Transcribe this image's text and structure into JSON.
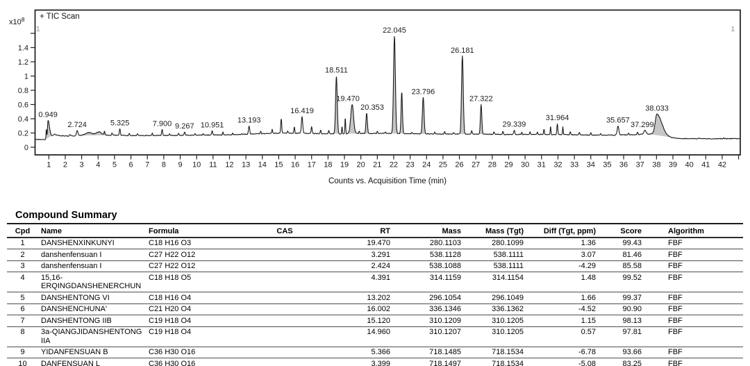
{
  "chart_data": {
    "type": "line",
    "title": "+ TIC Scan",
    "y_scale": {
      "base": "x10",
      "exp": "8"
    },
    "corner_markers": {
      "left": "1",
      "right": "1"
    },
    "xlabel": "Counts vs. Acquisition Time (min)",
    "x_ticks": [
      1,
      2,
      3,
      4,
      5,
      6,
      7,
      8,
      9,
      10,
      11,
      12,
      13,
      14,
      15,
      16,
      17,
      18,
      19,
      20,
      21,
      22,
      23,
      24,
      25,
      26,
      27,
      28,
      29,
      30,
      31,
      32,
      33,
      34,
      35,
      36,
      37,
      38,
      39,
      40,
      41,
      42
    ],
    "x_minor_ticks": [
      43
    ],
    "x_domain": [
      0.14,
      43.08
    ],
    "y_ticks": [
      {
        "v": 0,
        "label": "0"
      },
      {
        "v": 0.2,
        "label": "0.2"
      },
      {
        "v": 0.4,
        "label": "0.4"
      },
      {
        "v": 0.6,
        "label": "0.6"
      },
      {
        "v": 0.8,
        "label": "0.8"
      },
      {
        "v": 1,
        "label": "1"
      },
      {
        "v": 1.2,
        "label": "1.2"
      },
      {
        "v": 1.4,
        "label": "1.4"
      },
      {
        "v": 1.6,
        "label": ""
      }
    ],
    "intensity_units": "counts x10^8",
    "labeled_peaks": [
      {
        "rt": 0.949,
        "apex": 0.375,
        "sl": 0.03,
        "sr": 0.085,
        "filled": true,
        "fill": [
          0.78,
          1.12
        ]
      },
      {
        "rt": 2.724,
        "apex": 0.235,
        "sl": 0.045,
        "sr": 0.045
      },
      {
        "rt": 5.325,
        "apex": 0.26,
        "sl": 0.03,
        "sr": 0.03
      },
      {
        "rt": 7.9,
        "apex": 0.25,
        "sl": 0.03,
        "sr": 0.03
      },
      {
        "rt": 9.267,
        "apex": 0.215,
        "sl": 0.03,
        "sr": 0.03
      },
      {
        "rt": 10.951,
        "apex": 0.23,
        "sl": 0.03,
        "sr": 0.03
      },
      {
        "rt": 13.193,
        "apex": 0.3,
        "sl": 0.035,
        "sr": 0.035
      },
      {
        "rt": 16.419,
        "apex": 0.43,
        "sl": 0.04,
        "sr": 0.04
      },
      {
        "rt": 18.511,
        "apex": 1.0,
        "sl": 0.05,
        "sr": 0.05,
        "filled": true,
        "fill": [
          18.36,
          18.68
        ]
      },
      {
        "rt": 19.47,
        "apex": 0.6,
        "sl": 0.085,
        "sr": 0.085,
        "filled": true,
        "fill": [
          19.16,
          19.78
        ],
        "dx": -6
      },
      {
        "rt": 20.353,
        "apex": 0.48,
        "sl": 0.042,
        "sr": 0.042,
        "filled": true,
        "fill": [
          20.22,
          20.52
        ],
        "dx": 8
      },
      {
        "rt": 22.045,
        "apex": 1.56,
        "sl": 0.055,
        "sr": 0.055,
        "filled": true,
        "fill": [
          21.87,
          22.23
        ]
      },
      {
        "rt": 23.796,
        "apex": 0.7,
        "sl": 0.05,
        "sr": 0.05,
        "filled": true,
        "fill": [
          23.62,
          23.97
        ]
      },
      {
        "rt": 26.181,
        "apex": 1.28,
        "sl": 0.052,
        "sr": 0.052,
        "filled": true,
        "fill": [
          26.02,
          26.36
        ]
      },
      {
        "rt": 27.322,
        "apex": 0.6,
        "sl": 0.042,
        "sr": 0.042,
        "filled": true,
        "fill": [
          27.19,
          27.46
        ]
      },
      {
        "rt": 29.339,
        "apex": 0.24,
        "sl": 0.035,
        "sr": 0.035
      },
      {
        "rt": 31.964,
        "apex": 0.33,
        "sl": 0.028,
        "sr": 0.028
      },
      {
        "rt": 35.657,
        "apex": 0.3,
        "sl": 0.05,
        "sr": 0.05
      },
      {
        "rt": 37.299,
        "apex": 0.235,
        "sl": 0.07,
        "sr": 0.07,
        "dx": -4
      },
      {
        "rt": 38.033,
        "apex": 0.465,
        "sl": 0.11,
        "sr": 0.28,
        "filled": true,
        "fill": [
          37.62,
          39.35
        ]
      }
    ],
    "minor_peaks": [
      [
        0.85,
        0.26,
        0.018
      ],
      [
        1.35,
        0.185,
        0.07
      ],
      [
        2.3,
        0.175,
        0.04
      ],
      [
        3.45,
        0.205,
        0.22
      ],
      [
        4.05,
        0.215,
        0.15
      ],
      [
        4.39,
        0.225,
        0.025
      ],
      [
        4.85,
        0.2,
        0.025
      ],
      [
        5.9,
        0.195,
        0.025
      ],
      [
        6.4,
        0.185,
        0.03
      ],
      [
        7.3,
        0.195,
        0.025
      ],
      [
        8.35,
        0.19,
        0.025
      ],
      [
        8.9,
        0.195,
        0.025
      ],
      [
        9.9,
        0.195,
        0.025
      ],
      [
        10.4,
        0.19,
        0.025
      ],
      [
        11.6,
        0.21,
        0.025
      ],
      [
        12.2,
        0.2,
        0.025
      ],
      [
        12.75,
        0.195,
        0.025
      ],
      [
        13.9,
        0.225,
        0.025
      ],
      [
        14.6,
        0.25,
        0.025
      ],
      [
        15.15,
        0.4,
        0.028
      ],
      [
        15.55,
        0.23,
        0.025
      ],
      [
        15.95,
        0.285,
        0.025
      ],
      [
        17.0,
        0.29,
        0.03
      ],
      [
        17.55,
        0.24,
        0.025
      ],
      [
        18.05,
        0.235,
        0.025
      ],
      [
        18.85,
        0.3,
        0.018
      ],
      [
        19.05,
        0.42,
        0.022
      ],
      [
        19.9,
        0.23,
        0.022
      ],
      [
        21.0,
        0.225,
        0.025
      ],
      [
        21.5,
        0.215,
        0.025
      ],
      [
        22.49,
        0.78,
        0.04
      ],
      [
        23.1,
        0.21,
        0.025
      ],
      [
        24.5,
        0.215,
        0.025
      ],
      [
        25.1,
        0.22,
        0.025
      ],
      [
        25.65,
        0.21,
        0.025
      ],
      [
        26.75,
        0.24,
        0.025
      ],
      [
        28.1,
        0.215,
        0.025
      ],
      [
        28.65,
        0.22,
        0.025
      ],
      [
        29.8,
        0.215,
        0.022
      ],
      [
        30.3,
        0.22,
        0.022
      ],
      [
        30.75,
        0.215,
        0.022
      ],
      [
        31.15,
        0.26,
        0.022
      ],
      [
        31.55,
        0.3,
        0.02
      ],
      [
        32.3,
        0.29,
        0.02
      ],
      [
        32.75,
        0.225,
        0.022
      ],
      [
        33.3,
        0.21,
        0.025
      ],
      [
        34.0,
        0.2,
        0.025
      ],
      [
        34.6,
        0.195,
        0.025
      ],
      [
        36.3,
        0.2,
        0.025
      ],
      [
        36.85,
        0.215,
        0.025
      ],
      [
        40.6,
        0.128,
        0.04
      ],
      [
        42.1,
        0.126,
        0.04
      ]
    ],
    "extra_fills": [
      [
        22.36,
        22.66
      ],
      [
        3.0,
        4.55
      ]
    ],
    "baseline": [
      [
        0.07,
        0.11
      ],
      [
        0.8,
        0.11
      ],
      [
        1.05,
        0.155
      ],
      [
        1.5,
        0.165
      ],
      [
        2.2,
        0.155
      ],
      [
        2.9,
        0.165
      ],
      [
        4.6,
        0.17
      ],
      [
        6.0,
        0.165
      ],
      [
        8.0,
        0.165
      ],
      [
        10.0,
        0.17
      ],
      [
        12.0,
        0.175
      ],
      [
        14.0,
        0.19
      ],
      [
        15.3,
        0.2
      ],
      [
        16.5,
        0.195
      ],
      [
        18.0,
        0.19
      ],
      [
        19.0,
        0.19
      ],
      [
        21.0,
        0.195
      ],
      [
        23.0,
        0.19
      ],
      [
        25.0,
        0.185
      ],
      [
        27.0,
        0.185
      ],
      [
        29.0,
        0.18
      ],
      [
        31.0,
        0.18
      ],
      [
        33.0,
        0.175
      ],
      [
        34.5,
        0.17
      ],
      [
        35.5,
        0.17
      ],
      [
        36.5,
        0.175
      ],
      [
        37.8,
        0.185
      ],
      [
        38.4,
        0.17
      ],
      [
        38.9,
        0.135
      ],
      [
        39.4,
        0.122
      ],
      [
        40.0,
        0.12
      ],
      [
        43.08,
        0.12
      ]
    ],
    "noise_amplitude": 0.013,
    "colors": {
      "trace": "#1a1a1a",
      "peak_fill": "#c6c6c6",
      "frame": "#262626"
    }
  },
  "table": {
    "title": "Compound Summary",
    "columns": [
      "Cpd",
      "Name",
      "Formula",
      "CAS",
      "RT",
      "Mass",
      "Mass (Tgt)",
      "Diff (Tgt, ppm)",
      "Score",
      "Algorithm"
    ],
    "rows": [
      {
        "cpd": "1",
        "name": "DANSHENXINKUNYI",
        "formula": "C18 H16 O3",
        "cas": "",
        "rt": "19.470",
        "mass": "280.1103",
        "mass_tgt": "280.1099",
        "diff": "1.36",
        "score": "99.43",
        "algorithm": "FBF"
      },
      {
        "cpd": "2",
        "name": "danshenfensuan I",
        "formula": "C27 H22 O12",
        "cas": "",
        "rt": "3.291",
        "mass": "538.1128",
        "mass_tgt": "538.1111",
        "diff": "3.07",
        "score": "81.46",
        "algorithm": "FBF"
      },
      {
        "cpd": "3",
        "name": "danshenfensuan I",
        "formula": "C27 H22 O12",
        "cas": "",
        "rt": "2.424",
        "mass": "538.1088",
        "mass_tgt": "538.1111",
        "diff": "-4.29",
        "score": "85.58",
        "algorithm": "FBF"
      },
      {
        "cpd": "4",
        "name": "15,16-ERQINGDANSHENERCHUN",
        "formula": "C18 H18 O5",
        "cas": "",
        "rt": "4.391",
        "mass": "314.1159",
        "mass_tgt": "314.1154",
        "diff": "1.48",
        "score": "99.52",
        "algorithm": "FBF"
      },
      {
        "cpd": "5",
        "name": "DANSHENTONG VI",
        "formula": "C18 H16 O4",
        "cas": "",
        "rt": "13.202",
        "mass": "296.1054",
        "mass_tgt": "296.1049",
        "diff": "1.66",
        "score": "99.37",
        "algorithm": "FBF"
      },
      {
        "cpd": "6",
        "name": "DANSHENCHUNA'",
        "formula": "C21 H20 O4",
        "cas": "",
        "rt": "16.002",
        "mass": "336.1346",
        "mass_tgt": "336.1362",
        "diff": "-4.52",
        "score": "90.90",
        "algorithm": "FBF"
      },
      {
        "cpd": "7",
        "name": "DANSHENTONG IIB",
        "formula": "C19 H18 O4",
        "cas": "",
        "rt": "15.120",
        "mass": "310.1209",
        "mass_tgt": "310.1205",
        "diff": "1.15",
        "score": "98.13",
        "algorithm": "FBF"
      },
      {
        "cpd": "8",
        "name": "3a-QIANGJIDANSHENTONG IIA",
        "formula": "C19 H18 O4",
        "cas": "",
        "rt": "14.960",
        "mass": "310.1207",
        "mass_tgt": "310.1205",
        "diff": "0.57",
        "score": "97.81",
        "algorithm": "FBF"
      },
      {
        "cpd": "9",
        "name": "YIDANFENSUAN B",
        "formula": "C36 H30 O16",
        "cas": "",
        "rt": "5.366",
        "mass": "718.1485",
        "mass_tgt": "718.1534",
        "diff": "-6.78",
        "score": "93.66",
        "algorithm": "FBF"
      },
      {
        "cpd": "10",
        "name": "DANFENSUAN L",
        "formula": "C36 H30 O16",
        "cas": "",
        "rt": "3.399",
        "mass": "718.1497",
        "mass_tgt": "718.1534",
        "diff": "-5.08",
        "score": "83.25",
        "algorithm": "FBF"
      }
    ]
  }
}
